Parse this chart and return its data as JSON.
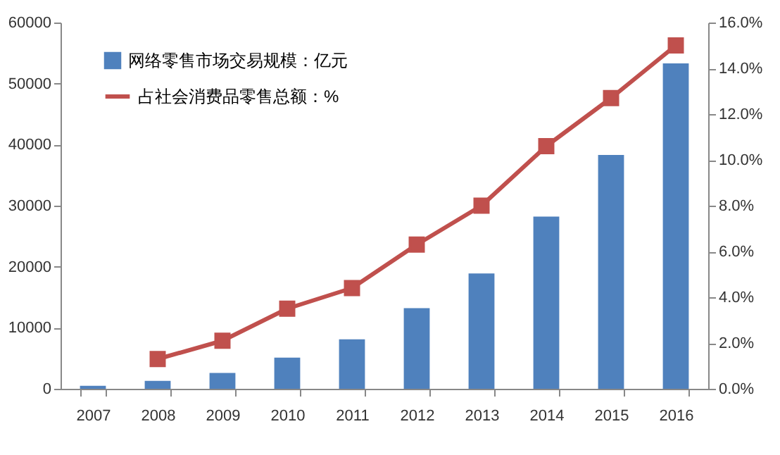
{
  "chart_data": {
    "type": "bar",
    "categories": [
      "2007",
      "2008",
      "2009",
      "2010",
      "2011",
      "2012",
      "2013",
      "2014",
      "2015",
      "2016"
    ],
    "series": [
      {
        "name": "网络零售市场交易规模：亿元",
        "color": "#4f81bd",
        "values": [
          500,
          1300,
          2600,
          5100,
          8100,
          13200,
          18900,
          28200,
          38300,
          53300
        ]
      },
      {
        "name": "占社会消费品零售总额：%",
        "type": "line",
        "axis": "y2",
        "color": "#c0504d",
        "marker": "square",
        "values": [
          null,
          1.3,
          2.1,
          3.5,
          4.4,
          6.3,
          8.0,
          10.6,
          12.7,
          15.0
        ]
      }
    ],
    "ylim": [
      0,
      60000
    ],
    "yticks": [
      0,
      10000,
      20000,
      30000,
      40000,
      50000,
      60000
    ],
    "y2lim": [
      0,
      16
    ],
    "y2ticks": [
      {
        "value": 0,
        "label": "0.0%"
      },
      {
        "value": 2,
        "label": "2.0%"
      },
      {
        "value": 4,
        "label": "4.0%"
      },
      {
        "value": 6,
        "label": "6.0%"
      },
      {
        "value": 8,
        "label": "8.0%"
      },
      {
        "value": 10,
        "label": "10.0%"
      },
      {
        "value": 12,
        "label": "12.0%"
      },
      {
        "value": 14,
        "label": "14.0%"
      },
      {
        "value": 16,
        "label": "16.0%"
      }
    ],
    "grid": false,
    "legend": "top left"
  }
}
